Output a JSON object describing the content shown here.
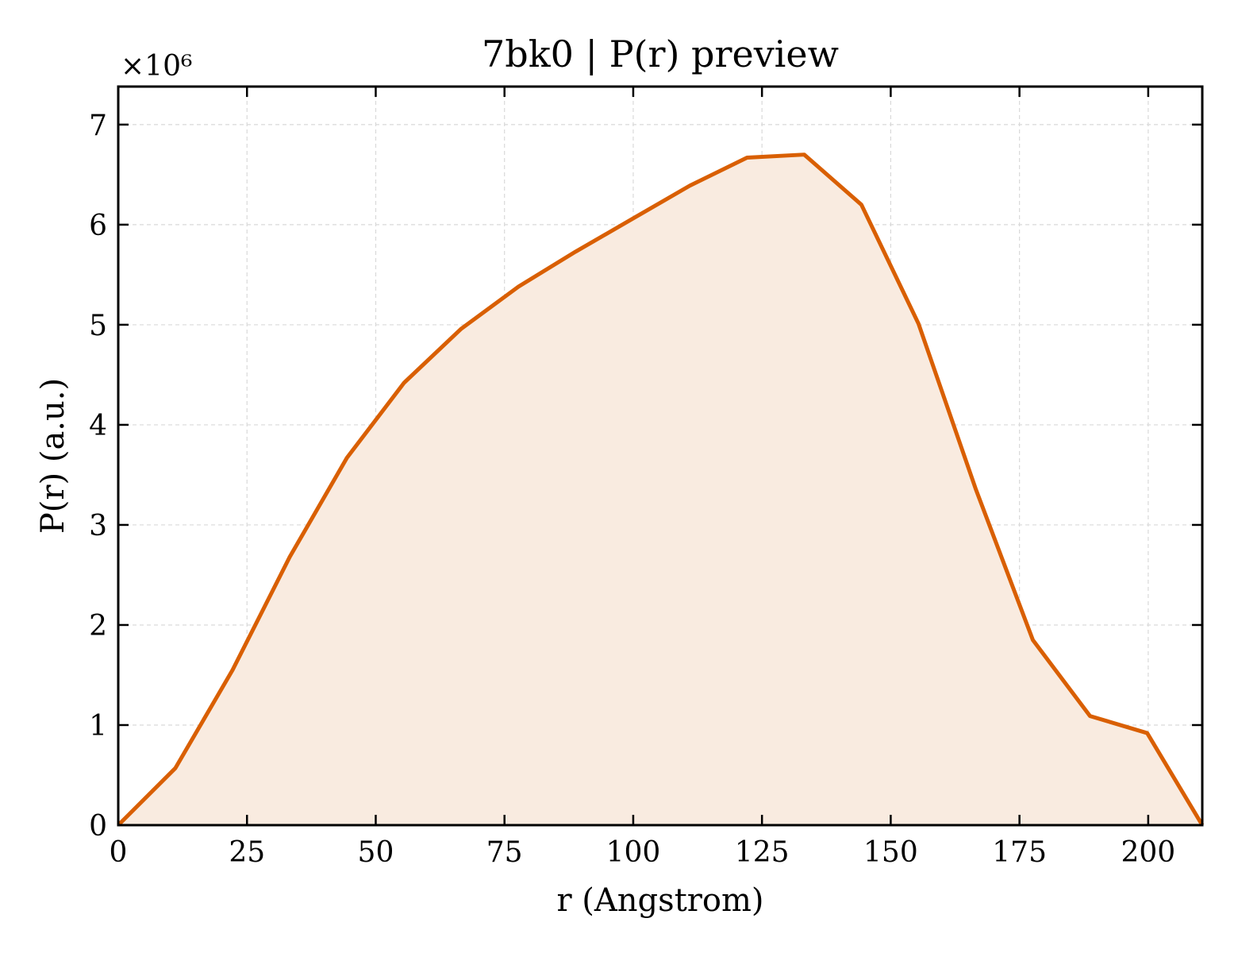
{
  "chart_data": {
    "type": "area",
    "title": "7bk0 | P(r) preview",
    "xlabel": "r (Angstrom)",
    "ylabel": "P(r) (a.u.)",
    "y_multiplier_label": "×10⁶",
    "y_multiplier": 1000000,
    "xlim": [
      0,
      210.5
    ],
    "ylim": [
      0,
      7.38
    ],
    "x_ticks": [
      0,
      25,
      50,
      75,
      100,
      125,
      150,
      175,
      200
    ],
    "y_ticks": [
      0,
      1,
      2,
      3,
      4,
      5,
      6,
      7
    ],
    "grid": true,
    "series": [
      {
        "x": [
          0,
          11.1,
          22.2,
          33.3,
          44.4,
          55.5,
          66.6,
          77.7,
          88.8,
          99.9,
          111.0,
          122.1,
          133.2,
          144.3,
          155.4,
          166.5,
          177.6,
          188.7,
          199.8,
          210.5
        ],
        "y": [
          0.0,
          0.57,
          1.55,
          2.68,
          3.67,
          4.42,
          4.96,
          5.38,
          5.73,
          6.06,
          6.39,
          6.67,
          6.7,
          6.2,
          5.01,
          3.36,
          1.85,
          1.09,
          0.92,
          0.0
        ]
      }
    ],
    "colors": {
      "line": "#d95f02",
      "fill": "#f9ebe0",
      "grid": "#d9d9d9",
      "axis": "#000000"
    }
  }
}
